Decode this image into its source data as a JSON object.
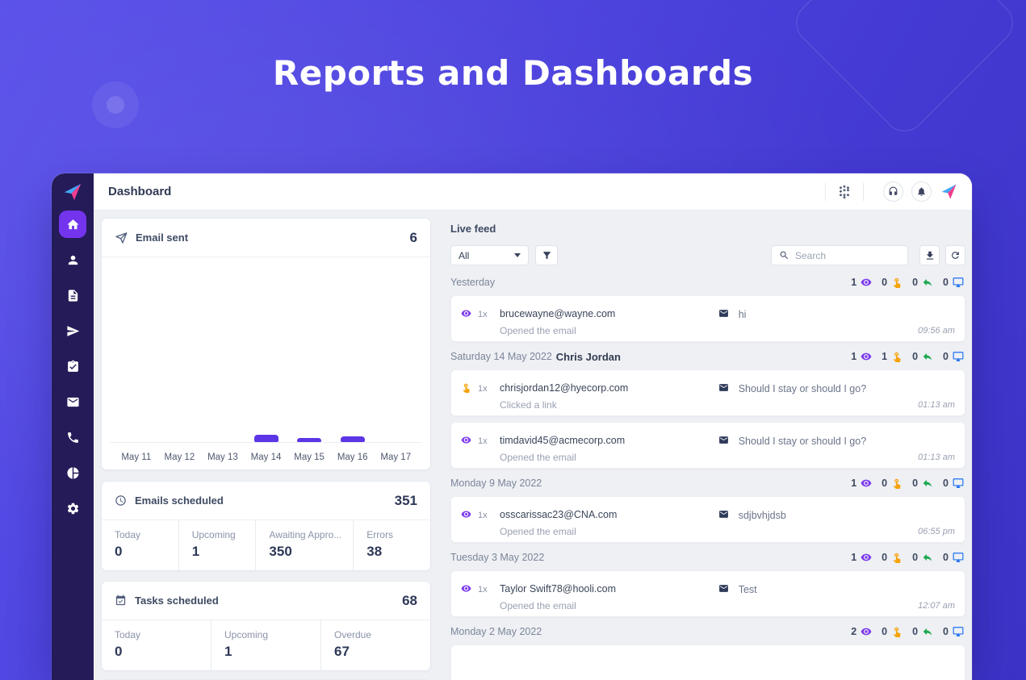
{
  "hero": {
    "title": "Reports and Dashboards"
  },
  "topbar": {
    "title": "Dashboard",
    "icons": [
      "dialpad-icon",
      "headset-icon",
      "bell-icon",
      "brand-logo"
    ]
  },
  "sidebar": {
    "items": [
      {
        "id": "home",
        "icon": "home-icon",
        "active": true
      },
      {
        "id": "contacts",
        "icon": "person-icon",
        "active": false
      },
      {
        "id": "documents",
        "icon": "document-icon",
        "active": false
      },
      {
        "id": "campaigns",
        "icon": "send-icon",
        "active": false
      },
      {
        "id": "tasks",
        "icon": "clipboard-check-icon",
        "active": false
      },
      {
        "id": "inbox",
        "icon": "envelope-icon",
        "active": false
      },
      {
        "id": "calls",
        "icon": "phone-icon",
        "active": false
      },
      {
        "id": "reports",
        "icon": "pie-chart-icon",
        "active": false
      },
      {
        "id": "settings",
        "icon": "gear-icon",
        "active": false
      }
    ]
  },
  "cards": {
    "email_sent": {
      "title": "Email sent",
      "icon": "send-outline-icon",
      "total": "6",
      "chart_data": {
        "type": "bar",
        "title": "Email sent",
        "categories": [
          "May 11",
          "May 12",
          "May 13",
          "May 14",
          "May 15",
          "May 16",
          "May 17"
        ],
        "values": [
          0,
          0,
          0,
          3,
          1,
          2,
          0
        ],
        "bar_color": "#5b35e6",
        "xlabel": "",
        "ylabel": "",
        "grid": false,
        "legend": false
      }
    },
    "emails_scheduled": {
      "title": "Emails scheduled",
      "icon": "clock-icon",
      "total": "351",
      "stats": [
        {
          "label": "Today",
          "value": "0"
        },
        {
          "label": "Upcoming",
          "value": "1"
        },
        {
          "label": "Awaiting Appro...",
          "value": "350"
        },
        {
          "label": "Errors",
          "value": "38"
        }
      ]
    },
    "tasks_scheduled": {
      "title": "Tasks scheduled",
      "icon": "calendar-check-icon",
      "total": "68",
      "stats": [
        {
          "label": "Today",
          "value": "0"
        },
        {
          "label": "Upcoming",
          "value": "1"
        },
        {
          "label": "Overdue",
          "value": "67"
        }
      ]
    }
  },
  "live_feed": {
    "title": "Live feed",
    "filter_value": "All",
    "search_placeholder": "Search",
    "stat_icons": {
      "opens": "eye-icon",
      "clicks": "touch-icon",
      "replies": "reply-icon",
      "visits": "monitor-icon"
    },
    "colors": {
      "opens": "#7c3aed",
      "clicks": "#f6a30a",
      "replies": "#1ea84f",
      "visits": "#1d6ff2"
    },
    "groups": [
      {
        "date": "Yesterday",
        "name": "",
        "opens": "1",
        "clicks": "0",
        "replies": "0",
        "visits": "0",
        "items": [
          {
            "type": "open",
            "count": "1x",
            "email": "brucewayne@wayne.com",
            "subject": "hi",
            "action": "Opened the email",
            "time": "09:56 am"
          }
        ]
      },
      {
        "date": "Saturday 14 May 2022",
        "name": "Chris Jordan",
        "opens": "1",
        "clicks": "1",
        "replies": "0",
        "visits": "0",
        "items": [
          {
            "type": "click",
            "count": "1x",
            "email": "chrisjordan12@hyecorp.com",
            "subject": "Should I stay or should I go?",
            "action": "Clicked a link",
            "time": "01:13 am"
          },
          {
            "type": "open",
            "count": "1x",
            "email": "timdavid45@acmecorp.com",
            "subject": "Should I stay or should I go?",
            "action": "Opened the email",
            "time": "01:13 am"
          }
        ]
      },
      {
        "date": "Monday 9 May 2022",
        "name": "",
        "opens": "1",
        "clicks": "0",
        "replies": "0",
        "visits": "0",
        "items": [
          {
            "type": "open",
            "count": "1x",
            "email": "osscarissac23@CNA.com",
            "subject": "sdjbvhjdsb",
            "action": "Opened the email",
            "time": "06:55 pm"
          }
        ]
      },
      {
        "date": "Tuesday 3 May 2022",
        "name": "",
        "opens": "1",
        "clicks": "0",
        "replies": "0",
        "visits": "0",
        "items": [
          {
            "type": "open",
            "count": "1x",
            "email": "Taylor Swift78@hooli.com",
            "subject": "Test",
            "action": "Opened the email",
            "time": "12:07 am"
          }
        ]
      },
      {
        "date": "Monday 2 May 2022",
        "name": "",
        "opens": "2",
        "clicks": "0",
        "replies": "0",
        "visits": "0",
        "items": [],
        "partial_item": true
      }
    ]
  }
}
